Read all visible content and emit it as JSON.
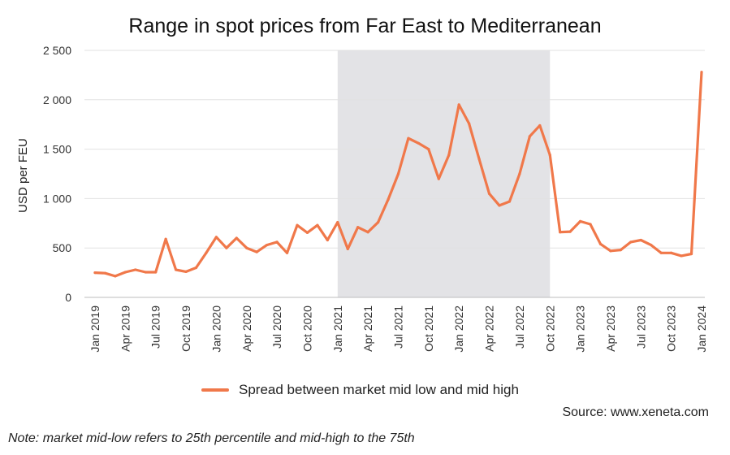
{
  "chart_data": {
    "type": "line",
    "title": "Range in spot prices from Far East to Mediterranean",
    "ylabel": "USD per FEU",
    "xlabel": "",
    "ylim": [
      0,
      2500
    ],
    "yticks": [
      0,
      500,
      1000,
      1500,
      2000,
      2500
    ],
    "ytick_labels": [
      "0",
      "500",
      "1 000",
      "1 500",
      "2 000",
      "2 500"
    ],
    "grid": "horizontal",
    "legend_position": "bottom",
    "x_tick_labels": [
      "Jan 2019",
      "Apr 2019",
      "Jul 2019",
      "Oct 2019",
      "Jan 2020",
      "Apr 2020",
      "Jul 2020",
      "Oct 2020",
      "Jan 2021",
      "Apr 2021",
      "Jul 2021",
      "Oct 2021",
      "Jan 2022",
      "Apr 2022",
      "Jul 2022",
      "Oct 2022",
      "Jan 2023",
      "Apr 2023",
      "Jul 2023",
      "Oct 2023",
      "Jan 2024"
    ],
    "shaded_region": {
      "start": "Jan 2021",
      "end": "Oct 2022",
      "color": "#e3e3e6"
    },
    "series": [
      {
        "name": "Spread between market mid low and mid high",
        "color": "#f0784a",
        "x": [
          "Jan 2019",
          "Feb 2019",
          "Mar 2019",
          "Apr 2019",
          "May 2019",
          "Jun 2019",
          "Jul 2019",
          "Aug 2019",
          "Sep 2019",
          "Oct 2019",
          "Nov 2019",
          "Dec 2019",
          "Jan 2020",
          "Feb 2020",
          "Mar 2020",
          "Apr 2020",
          "May 2020",
          "Jun 2020",
          "Jul 2020",
          "Aug 2020",
          "Sep 2020",
          "Oct 2020",
          "Nov 2020",
          "Dec 2020",
          "Jan 2021",
          "Feb 2021",
          "Mar 2021",
          "Apr 2021",
          "May 2021",
          "Jun 2021",
          "Jul 2021",
          "Aug 2021",
          "Sep 2021",
          "Oct 2021",
          "Nov 2021",
          "Dec 2021",
          "Jan 2022",
          "Feb 2022",
          "Mar 2022",
          "Apr 2022",
          "May 2022",
          "Jun 2022",
          "Jul 2022",
          "Aug 2022",
          "Sep 2022",
          "Oct 2022",
          "Nov 2022",
          "Dec 2022",
          "Jan 2023",
          "Feb 2023",
          "Mar 2023",
          "Apr 2023",
          "May 2023",
          "Jun 2023",
          "Jul 2023",
          "Aug 2023",
          "Sep 2023",
          "Oct 2023",
          "Nov 2023",
          "Dec 2023",
          "Jan 2024"
        ],
        "values": [
          250,
          245,
          215,
          255,
          280,
          255,
          255,
          590,
          280,
          260,
          300,
          450,
          610,
          500,
          600,
          500,
          460,
          530,
          560,
          450,
          730,
          655,
          730,
          580,
          760,
          490,
          710,
          660,
          760,
          990,
          1250,
          1610,
          1560,
          1500,
          1200,
          1440,
          1950,
          1760,
          1400,
          1050,
          930,
          970,
          1250,
          1630,
          1740,
          1440,
          660,
          665,
          770,
          740,
          540,
          470,
          480,
          560,
          580,
          530,
          450,
          450,
          420,
          440,
          2280
        ]
      }
    ]
  },
  "legend": {
    "label": "Spread between market mid low and mid high"
  },
  "source": "Source: www.xeneta.com",
  "footnote": {
    "lead": "Note",
    "body": ": market mid-low refers to 25th percentile and mid-high to the 75th"
  }
}
